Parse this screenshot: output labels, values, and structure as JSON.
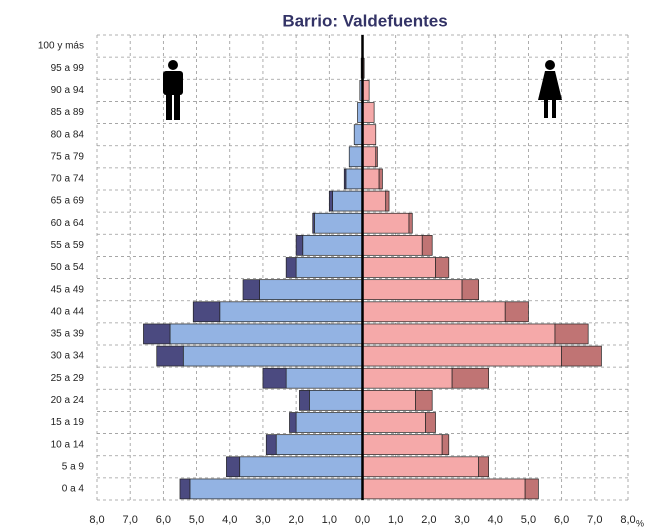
{
  "chart_data": {
    "type": "pyramid",
    "title": "Barrio: Valdefuentes",
    "xlabel": "%",
    "categories": [
      "0 a 4",
      "5 a 9",
      "10 a 14",
      "15 a 19",
      "20 a 24",
      "25 a 29",
      "30 a 34",
      "35 a 39",
      "40 a 44",
      "45 a 49",
      "50 a 54",
      "55 a 59",
      "60 a 64",
      "65 a 69",
      "70 a 74",
      "75 a 79",
      "80 a 84",
      "85 a 89",
      "90 a 94",
      "95 a 99",
      "100 y más"
    ],
    "series": [
      {
        "side": "left",
        "color": "#93b3e3",
        "values": [
          5.2,
          3.7,
          2.6,
          2.0,
          1.6,
          2.3,
          5.4,
          5.8,
          4.3,
          3.1,
          2.0,
          1.8,
          1.45,
          0.9,
          0.5,
          0.4,
          0.25,
          0.15,
          0.08,
          0.04,
          0.02
        ]
      },
      {
        "side": "left",
        "color": "#4b4a80",
        "values": [
          0.3,
          0.4,
          0.3,
          0.2,
          0.3,
          0.7,
          0.8,
          0.8,
          0.8,
          0.5,
          0.3,
          0.2,
          0.05,
          0.1,
          0.05,
          0,
          0,
          0,
          0,
          0,
          0
        ]
      },
      {
        "side": "right",
        "color": "#f5a9a9",
        "values": [
          4.9,
          3.5,
          2.4,
          1.9,
          1.6,
          2.7,
          6.0,
          5.8,
          4.3,
          3.0,
          2.2,
          1.8,
          1.4,
          0.7,
          0.5,
          0.4,
          0.4,
          0.35,
          0.2,
          0.05,
          0.02
        ]
      },
      {
        "side": "right",
        "color": "#c07474",
        "values": [
          0.4,
          0.3,
          0.2,
          0.3,
          0.5,
          1.1,
          1.2,
          1.0,
          0.7,
          0.5,
          0.4,
          0.3,
          0.1,
          0.1,
          0.1,
          0.05,
          0,
          0,
          0,
          0,
          0
        ]
      }
    ],
    "xlim": [
      -8,
      8
    ],
    "xticks": [
      {
        "value": -8,
        "label": "8,0"
      },
      {
        "value": -7,
        "label": "7,0"
      },
      {
        "value": -6,
        "label": "6,0"
      },
      {
        "value": -5,
        "label": "5,0"
      },
      {
        "value": -4,
        "label": "4,0"
      },
      {
        "value": -3,
        "label": "3,0"
      },
      {
        "value": -2,
        "label": "2,0"
      },
      {
        "value": -1,
        "label": "1,0"
      },
      {
        "value": 0,
        "label": "0,0"
      },
      {
        "value": 1,
        "label": "1,0"
      },
      {
        "value": 2,
        "label": "2,0"
      },
      {
        "value": 3,
        "label": "3,0"
      },
      {
        "value": 4,
        "label": "4,0"
      },
      {
        "value": 5,
        "label": "5,0"
      },
      {
        "value": 6,
        "label": "6,0"
      },
      {
        "value": 7,
        "label": "7,0"
      },
      {
        "value": 8,
        "label": "8,0"
      }
    ],
    "grid": true
  }
}
